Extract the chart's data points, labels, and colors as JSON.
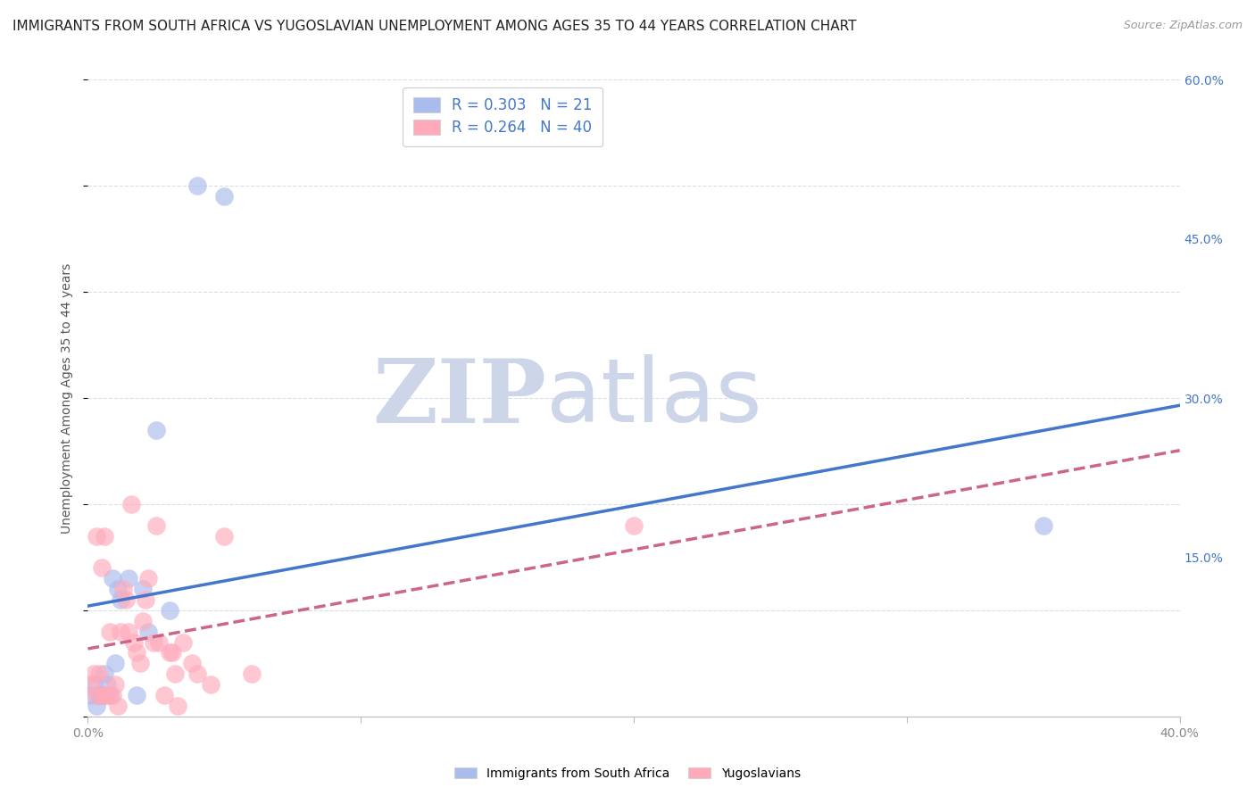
{
  "title": "IMMIGRANTS FROM SOUTH AFRICA VS YUGOSLAVIAN UNEMPLOYMENT AMONG AGES 35 TO 44 YEARS CORRELATION CHART",
  "source": "Source: ZipAtlas.com",
  "ylabel": "Unemployment Among Ages 35 to 44 years",
  "xlim": [
    0.0,
    0.4
  ],
  "ylim": [
    0.0,
    0.6
  ],
  "yticks_right": [
    0.0,
    0.15,
    0.3,
    0.45,
    0.6
  ],
  "ytick_labels_right": [
    "",
    "15.0%",
    "30.0%",
    "45.0%",
    "60.0%"
  ],
  "grid_color": "#d8dde8",
  "background_color": "#ffffff",
  "watermark_zip": "ZIP",
  "watermark_atlas": "atlas",
  "watermark_color": "#ccd6e8",
  "series": [
    {
      "label": "Immigrants from South Africa",
      "R": 0.303,
      "N": 21,
      "color": "#4477cc",
      "scatter_color": "#aabbee",
      "line_style": "solid",
      "x": [
        0.001,
        0.002,
        0.003,
        0.004,
        0.005,
        0.006,
        0.007,
        0.008,
        0.009,
        0.01,
        0.011,
        0.012,
        0.015,
        0.018,
        0.02,
        0.022,
        0.025,
        0.03,
        0.04,
        0.05,
        0.35
      ],
      "y": [
        0.02,
        0.03,
        0.01,
        0.02,
        0.02,
        0.04,
        0.03,
        0.02,
        0.13,
        0.05,
        0.12,
        0.11,
        0.13,
        0.02,
        0.12,
        0.08,
        0.27,
        0.1,
        0.5,
        0.49,
        0.18
      ]
    },
    {
      "label": "Yugoslavians",
      "R": 0.264,
      "N": 40,
      "color": "#cc6688",
      "scatter_color": "#ffaabb",
      "line_style": "dashed",
      "x": [
        0.001,
        0.002,
        0.003,
        0.003,
        0.004,
        0.005,
        0.005,
        0.006,
        0.006,
        0.007,
        0.008,
        0.009,
        0.01,
        0.011,
        0.012,
        0.013,
        0.014,
        0.015,
        0.016,
        0.017,
        0.018,
        0.019,
        0.02,
        0.021,
        0.022,
        0.024,
        0.025,
        0.026,
        0.028,
        0.03,
        0.031,
        0.032,
        0.033,
        0.035,
        0.038,
        0.04,
        0.045,
        0.05,
        0.06,
        0.2
      ],
      "y": [
        0.03,
        0.04,
        0.02,
        0.17,
        0.04,
        0.02,
        0.14,
        0.02,
        0.17,
        0.02,
        0.08,
        0.02,
        0.03,
        0.01,
        0.08,
        0.12,
        0.11,
        0.08,
        0.2,
        0.07,
        0.06,
        0.05,
        0.09,
        0.11,
        0.13,
        0.07,
        0.18,
        0.07,
        0.02,
        0.06,
        0.06,
        0.04,
        0.01,
        0.07,
        0.05,
        0.04,
        0.03,
        0.17,
        0.04,
        0.18
      ]
    }
  ],
  "title_fontsize": 11,
  "source_fontsize": 9,
  "axis_label_fontsize": 10,
  "tick_fontsize": 10,
  "legend_fontsize": 12
}
